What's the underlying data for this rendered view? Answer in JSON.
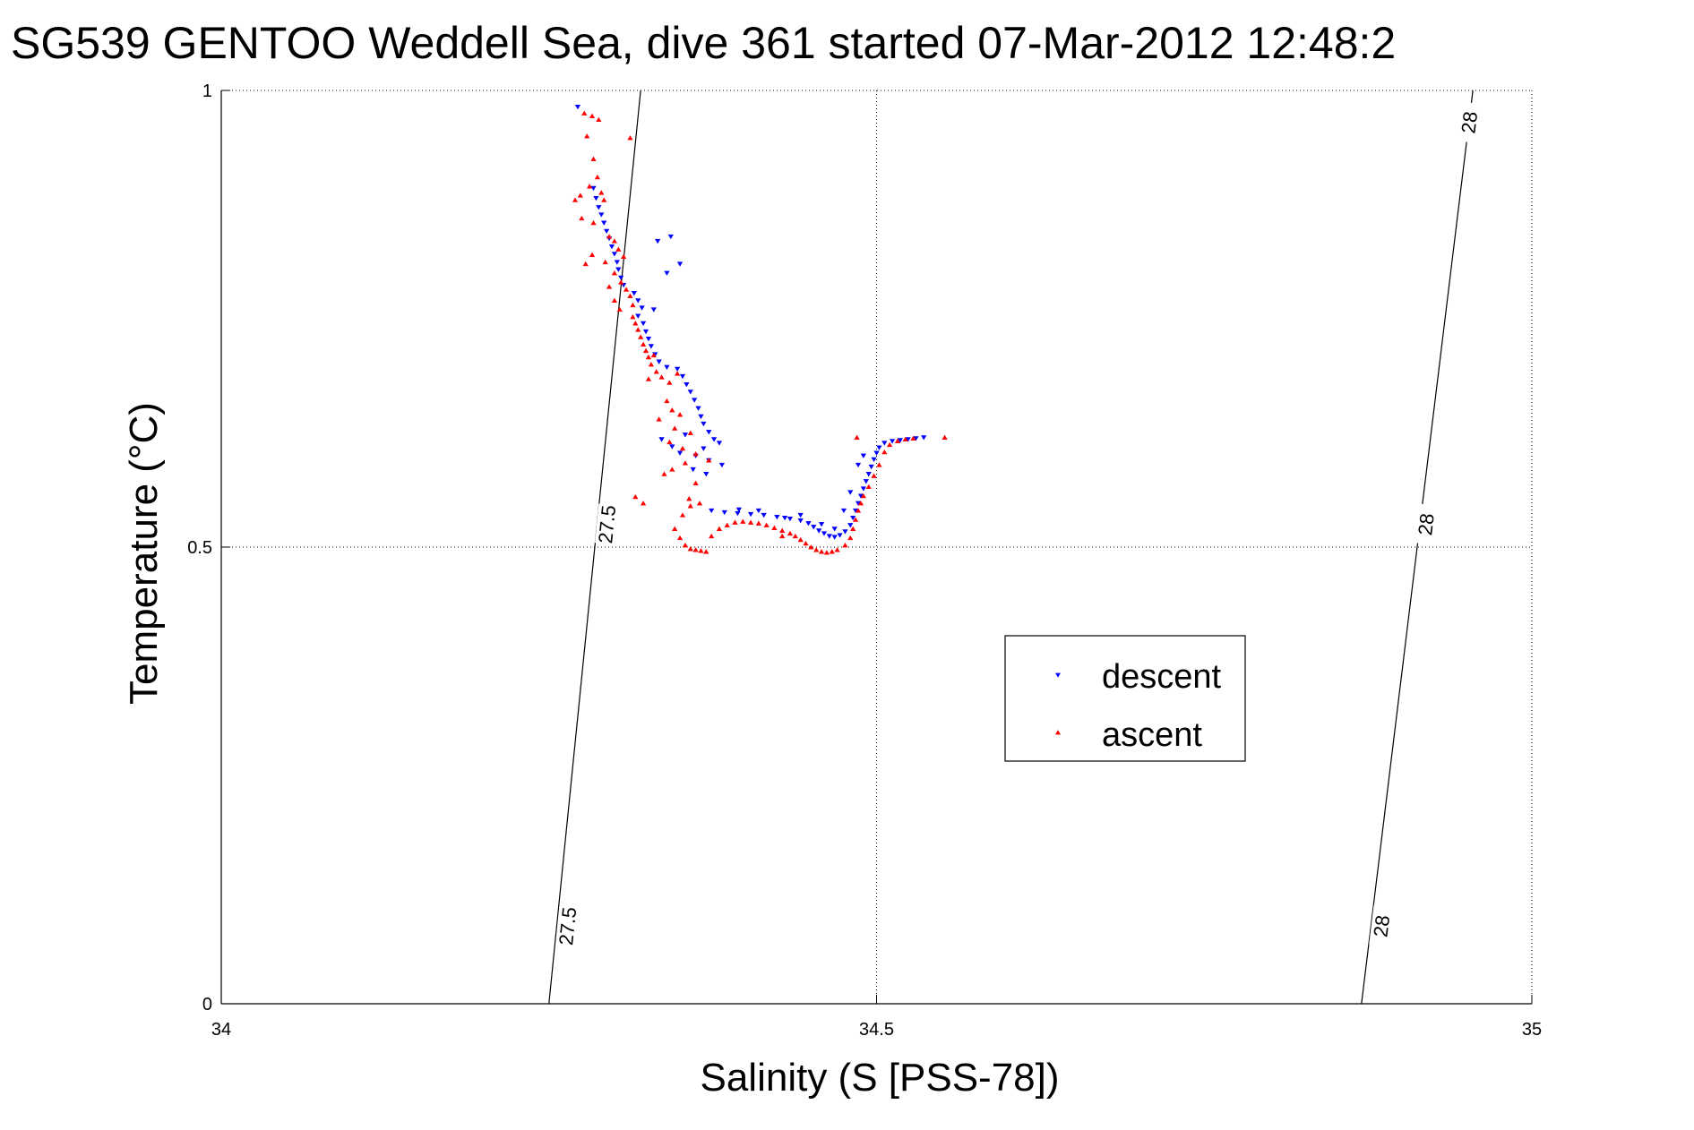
{
  "chart_data": {
    "type": "scatter",
    "title": "SG539 GENTOO Weddell Sea, dive 361 started 07-Mar-2012 12:48:2",
    "xlabel": "Salinity (S [PSS-78])",
    "ylabel": "Temperature (°C)",
    "xlim": [
      34,
      35
    ],
    "ylim": [
      0,
      1
    ],
    "xticks": [
      34,
      34.5,
      35
    ],
    "xtick_labels": [
      "34",
      "34.5",
      "35"
    ],
    "yticks": [
      0,
      0.5,
      1
    ],
    "ytick_labels": [
      "0",
      "0.5",
      "1"
    ],
    "grid": true,
    "legend_placement": "center-right",
    "isopycnals": [
      {
        "value": "27.5",
        "line": [
          [
            34.25,
            0
          ],
          [
            34.32,
            1
          ]
        ],
        "labels": [
          {
            "text": "27.5",
            "at": [
              34.264,
              0.085
            ]
          },
          {
            "text": "27.5",
            "at": [
              34.294,
              0.525
            ]
          }
        ]
      },
      {
        "value": "28",
        "line": [
          [
            34.87,
            0
          ],
          [
            34.955,
            1
          ]
        ],
        "labels": [
          {
            "text": "28",
            "at": [
              34.885,
              0.085
            ]
          },
          {
            "text": "28",
            "at": [
              34.919,
              0.525
            ]
          },
          {
            "text": "28",
            "at": [
              34.952,
              0.965
            ]
          }
        ]
      }
    ],
    "series": [
      {
        "name": "descent",
        "color": "#0000ff",
        "marker": "triangle-down",
        "points": [
          [
            34.272,
            0.982
          ],
          [
            34.284,
            0.893
          ],
          [
            34.286,
            0.882
          ],
          [
            34.288,
            0.872
          ],
          [
            34.29,
            0.864
          ],
          [
            34.292,
            0.855
          ],
          [
            34.294,
            0.846
          ],
          [
            34.296,
            0.838
          ],
          [
            34.298,
            0.829
          ],
          [
            34.3,
            0.821
          ],
          [
            34.302,
            0.812
          ],
          [
            34.303,
            0.804
          ],
          [
            34.305,
            0.795
          ],
          [
            34.307,
            0.787
          ],
          [
            34.315,
            0.778
          ],
          [
            34.318,
            0.77
          ],
          [
            34.321,
            0.762
          ],
          [
            34.318,
            0.753
          ],
          [
            34.322,
            0.745
          ],
          [
            34.324,
            0.736
          ],
          [
            34.326,
            0.728
          ],
          [
            34.328,
            0.72
          ],
          [
            34.331,
            0.711
          ],
          [
            34.334,
            0.703
          ],
          [
            34.34,
            0.697
          ],
          [
            34.348,
            0.695
          ],
          [
            34.352,
            0.687
          ],
          [
            34.355,
            0.678
          ],
          [
            34.358,
            0.67
          ],
          [
            34.361,
            0.661
          ],
          [
            34.364,
            0.652
          ],
          [
            34.366,
            0.643
          ],
          [
            34.368,
            0.635
          ],
          [
            34.372,
            0.626
          ],
          [
            34.376,
            0.618
          ],
          [
            34.38,
            0.614
          ],
          [
            34.368,
            0.608
          ],
          [
            34.35,
            0.603
          ],
          [
            34.362,
            0.6
          ],
          [
            34.372,
            0.595
          ],
          [
            34.382,
            0.59
          ],
          [
            34.344,
            0.61
          ],
          [
            34.336,
            0.618
          ],
          [
            34.354,
            0.623
          ],
          [
            34.36,
            0.585
          ],
          [
            34.37,
            0.58
          ],
          [
            34.343,
            0.84
          ],
          [
            34.333,
            0.835
          ],
          [
            34.35,
            0.81
          ],
          [
            34.34,
            0.8
          ],
          [
            34.33,
            0.76
          ],
          [
            34.374,
            0.54
          ],
          [
            34.384,
            0.538
          ],
          [
            34.394,
            0.537
          ],
          [
            34.404,
            0.536
          ],
          [
            34.414,
            0.535
          ],
          [
            34.424,
            0.533
          ],
          [
            34.434,
            0.531
          ],
          [
            34.442,
            0.529
          ],
          [
            34.448,
            0.526
          ],
          [
            34.452,
            0.522
          ],
          [
            34.456,
            0.518
          ],
          [
            34.46,
            0.515
          ],
          [
            34.464,
            0.512
          ],
          [
            34.468,
            0.511
          ],
          [
            34.472,
            0.513
          ],
          [
            34.476,
            0.517
          ],
          [
            34.48,
            0.524
          ],
          [
            34.482,
            0.532
          ],
          [
            34.484,
            0.54
          ],
          [
            34.486,
            0.548
          ],
          [
            34.488,
            0.556
          ],
          [
            34.49,
            0.564
          ],
          [
            34.492,
            0.572
          ],
          [
            34.494,
            0.58
          ],
          [
            34.496,
            0.588
          ],
          [
            34.498,
            0.596
          ],
          [
            34.5,
            0.603
          ],
          [
            34.502,
            0.609
          ],
          [
            34.506,
            0.614
          ],
          [
            34.512,
            0.616
          ],
          [
            34.518,
            0.617
          ],
          [
            34.524,
            0.618
          ],
          [
            34.53,
            0.619
          ],
          [
            34.536,
            0.62
          ],
          [
            34.486,
            0.59
          ],
          [
            34.49,
            0.6
          ],
          [
            34.48,
            0.56
          ],
          [
            34.475,
            0.54
          ],
          [
            34.468,
            0.52
          ],
          [
            34.458,
            0.525
          ],
          [
            34.442,
            0.535
          ],
          [
            34.43,
            0.532
          ],
          [
            34.41,
            0.54
          ],
          [
            34.395,
            0.541
          ]
        ]
      },
      {
        "name": "ascent",
        "color": "#ff0000",
        "marker": "triangle-up",
        "points": [
          [
            34.277,
            0.975
          ],
          [
            34.283,
            0.972
          ],
          [
            34.288,
            0.968
          ],
          [
            34.279,
            0.95
          ],
          [
            34.284,
            0.925
          ],
          [
            34.312,
            0.948
          ],
          [
            34.281,
            0.895
          ],
          [
            34.287,
            0.905
          ],
          [
            34.29,
            0.888
          ],
          [
            34.292,
            0.88
          ],
          [
            34.275,
            0.86
          ],
          [
            34.284,
            0.855
          ],
          [
            34.296,
            0.84
          ],
          [
            34.3,
            0.835
          ],
          [
            34.303,
            0.826
          ],
          [
            34.307,
            0.818
          ],
          [
            34.293,
            0.812
          ],
          [
            34.278,
            0.81
          ],
          [
            34.3,
            0.8
          ],
          [
            34.305,
            0.79
          ],
          [
            34.309,
            0.782
          ],
          [
            34.312,
            0.775
          ],
          [
            34.314,
            0.765
          ],
          [
            34.304,
            0.76
          ],
          [
            34.314,
            0.752
          ],
          [
            34.316,
            0.745
          ],
          [
            34.318,
            0.738
          ],
          [
            34.32,
            0.73
          ],
          [
            34.322,
            0.722
          ],
          [
            34.324,
            0.715
          ],
          [
            34.326,
            0.708
          ],
          [
            34.328,
            0.7
          ],
          [
            34.332,
            0.692
          ],
          [
            34.336,
            0.686
          ],
          [
            34.342,
            0.68
          ],
          [
            34.326,
            0.684
          ],
          [
            34.34,
            0.66
          ],
          [
            34.344,
            0.65
          ],
          [
            34.35,
            0.645
          ],
          [
            34.334,
            0.64
          ],
          [
            34.346,
            0.63
          ],
          [
            34.358,
            0.625
          ],
          [
            34.342,
            0.615
          ],
          [
            34.352,
            0.608
          ],
          [
            34.362,
            0.602
          ],
          [
            34.372,
            0.595
          ],
          [
            34.354,
            0.592
          ],
          [
            34.344,
            0.585
          ],
          [
            34.338,
            0.58
          ],
          [
            34.362,
            0.57
          ],
          [
            34.316,
            0.555
          ],
          [
            34.322,
            0.548
          ],
          [
            34.358,
            0.545
          ],
          [
            34.352,
            0.535
          ],
          [
            34.346,
            0.52
          ],
          [
            34.35,
            0.51
          ],
          [
            34.354,
            0.502
          ],
          [
            34.358,
            0.498
          ],
          [
            34.362,
            0.497
          ],
          [
            34.366,
            0.496
          ],
          [
            34.37,
            0.495
          ],
          [
            34.374,
            0.512
          ],
          [
            34.38,
            0.52
          ],
          [
            34.386,
            0.524
          ],
          [
            34.392,
            0.527
          ],
          [
            34.398,
            0.528
          ],
          [
            34.404,
            0.527
          ],
          [
            34.41,
            0.526
          ],
          [
            34.416,
            0.524
          ],
          [
            34.422,
            0.521
          ],
          [
            34.428,
            0.518
          ],
          [
            34.434,
            0.515
          ],
          [
            34.438,
            0.512
          ],
          [
            34.442,
            0.508
          ],
          [
            34.446,
            0.504
          ],
          [
            34.45,
            0.5
          ],
          [
            34.454,
            0.497
          ],
          [
            34.458,
            0.495
          ],
          [
            34.462,
            0.494
          ],
          [
            34.466,
            0.495
          ],
          [
            34.47,
            0.497
          ],
          [
            34.476,
            0.502
          ],
          [
            34.48,
            0.51
          ],
          [
            34.482,
            0.52
          ],
          [
            34.484,
            0.53
          ],
          [
            34.486,
            0.54
          ],
          [
            34.488,
            0.548
          ],
          [
            34.49,
            0.556
          ],
          [
            34.494,
            0.566
          ],
          [
            34.498,
            0.578
          ],
          [
            34.502,
            0.59
          ],
          [
            34.506,
            0.604
          ],
          [
            34.51,
            0.612
          ],
          [
            34.516,
            0.616
          ],
          [
            34.522,
            0.618
          ],
          [
            34.528,
            0.619
          ],
          [
            34.485,
            0.62
          ],
          [
            34.552,
            0.62
          ],
          [
            34.3,
            0.77
          ],
          [
            34.296,
            0.785
          ],
          [
            34.27,
            0.88
          ],
          [
            34.274,
            0.885
          ],
          [
            34.283,
            0.82
          ],
          [
            34.348,
            0.69
          ],
          [
            34.33,
            0.71
          ],
          [
            34.357,
            0.553
          ],
          [
            34.365,
            0.548
          ],
          [
            34.428,
            0.512
          ]
        ]
      }
    ]
  }
}
